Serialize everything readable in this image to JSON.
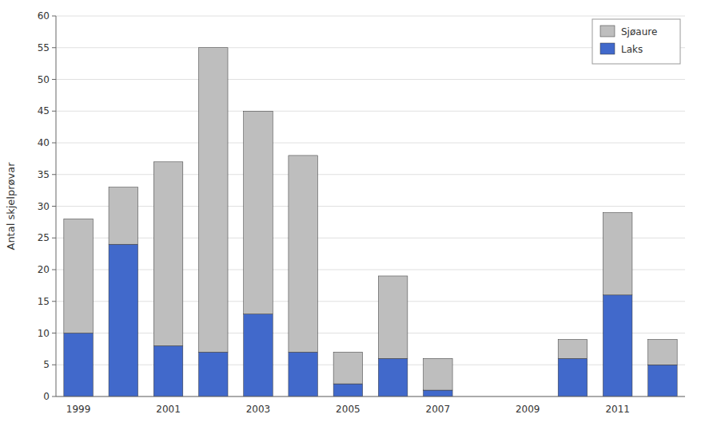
{
  "chart_data": {
    "type": "bar",
    "stacked": true,
    "categories": [
      "1999",
      null,
      "2001",
      null,
      "2003",
      null,
      "2005",
      null,
      "2007",
      null,
      "2009",
      null,
      "2011",
      null
    ],
    "series": [
      {
        "name": "Laks",
        "color": "#4169CB",
        "values": [
          10,
          24,
          8,
          7,
          13,
          7,
          2,
          6,
          1,
          0,
          0,
          6,
          16,
          5
        ]
      },
      {
        "name": "Sjøaure",
        "color": "#BEBEBE",
        "values": [
          18,
          9,
          29,
          48,
          32,
          31,
          5,
          13,
          5,
          0,
          0,
          3,
          13,
          4
        ]
      }
    ],
    "ylabel": "Antal skjelprøvar",
    "ylim": [
      0,
      60
    ],
    "yticks": [
      0,
      5,
      10,
      15,
      20,
      25,
      30,
      35,
      40,
      45,
      50,
      55,
      60
    ],
    "grid": true,
    "legend": "upper right"
  }
}
